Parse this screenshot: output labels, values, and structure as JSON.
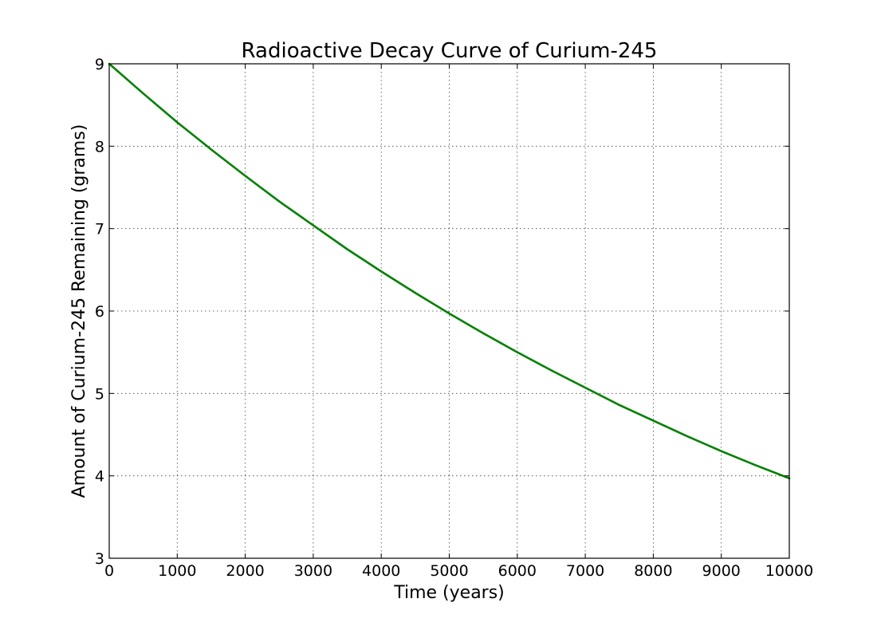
{
  "chart_data": {
    "type": "line",
    "title": "Radioactive Decay Curve of Curium-245",
    "xlabel": "Time (years)",
    "ylabel": "Amount of Curium-245 Remaining (grams)",
    "xlim": [
      0,
      10000
    ],
    "ylim": [
      3,
      9
    ],
    "xticks": [
      0,
      1000,
      2000,
      3000,
      4000,
      5000,
      6000,
      7000,
      8000,
      9000,
      10000
    ],
    "yticks": [
      3,
      4,
      5,
      6,
      7,
      8,
      9
    ],
    "grid": true,
    "legend": "none",
    "series": [
      {
        "color": "#008000",
        "x": [
          0,
          500,
          1000,
          1500,
          2000,
          2500,
          3000,
          3500,
          4000,
          4500,
          5000,
          5500,
          6000,
          6500,
          7000,
          7500,
          8000,
          8500,
          9000,
          9500,
          10000
        ],
        "y": [
          9.0,
          8.64,
          8.29,
          7.96,
          7.64,
          7.33,
          7.04,
          6.75,
          6.48,
          6.22,
          5.97,
          5.73,
          5.5,
          5.28,
          5.07,
          4.86,
          4.67,
          4.48,
          4.3,
          4.13,
          3.97
        ]
      }
    ]
  }
}
